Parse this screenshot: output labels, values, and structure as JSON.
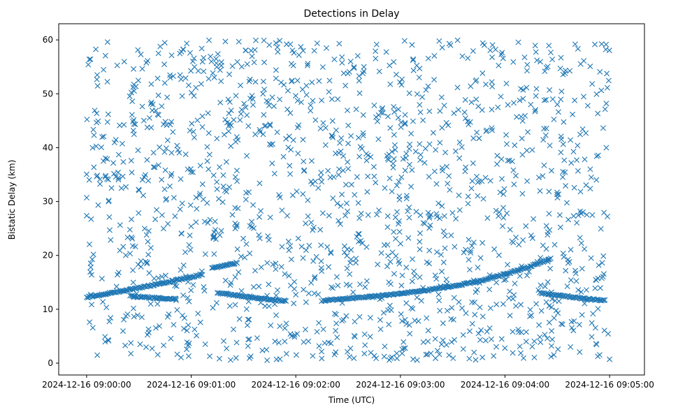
{
  "chart_data": {
    "type": "scatter",
    "title": "Detections in Delay",
    "xlabel": "Time (UTC)",
    "ylabel": "Bistatic Delay (km)",
    "xlim": [
      "2024-12-16 08:59:44",
      "2024-12-16 09:05:20"
    ],
    "ylim": [
      -2.2,
      63
    ],
    "x_ticks": [
      "2024-12-16 09:00:00",
      "2024-12-16 09:01:00",
      "2024-12-16 09:02:00",
      "2024-12-16 09:03:00",
      "2024-12-16 09:04:00",
      "2024-12-16 09:05:00"
    ],
    "y_ticks": [
      0,
      10,
      20,
      30,
      40,
      50,
      60
    ],
    "marker": "x",
    "color": "#1f77b4",
    "grid": false,
    "tracks": [
      {
        "points": [
          [
            "2024-12-16 09:00:00",
            12.2
          ],
          [
            "2024-12-16 09:00:10",
            12.8
          ],
          [
            "2024-12-16 09:00:20",
            13.4
          ],
          [
            "2024-12-16 09:00:30",
            14.0
          ],
          [
            "2024-12-16 09:00:40",
            14.6
          ],
          [
            "2024-12-16 09:00:50",
            15.3
          ],
          [
            "2024-12-16 09:01:00",
            16.0
          ],
          [
            "2024-12-16 09:01:07",
            16.5
          ]
        ]
      },
      {
        "points": [
          [
            "2024-12-16 09:01:12",
            17.6
          ],
          [
            "2024-12-16 09:01:20",
            18.2
          ],
          [
            "2024-12-16 09:01:27",
            18.7
          ]
        ]
      },
      {
        "points": [
          [
            "2024-12-16 09:00:25",
            12.5
          ],
          [
            "2024-12-16 09:00:35",
            12.2
          ],
          [
            "2024-12-16 09:00:45",
            12.0
          ],
          [
            "2024-12-16 09:00:52",
            11.9
          ]
        ]
      },
      {
        "points": [
          [
            "2024-12-16 09:01:15",
            13.0
          ],
          [
            "2024-12-16 09:01:25",
            12.6
          ],
          [
            "2024-12-16 09:01:35",
            12.2
          ],
          [
            "2024-12-16 09:01:45",
            11.8
          ],
          [
            "2024-12-16 09:01:55",
            11.5
          ]
        ]
      },
      {
        "points": [
          [
            "2024-12-16 09:02:15",
            11.6
          ],
          [
            "2024-12-16 09:02:30",
            12.0
          ],
          [
            "2024-12-16 09:02:45",
            12.4
          ],
          [
            "2024-12-16 09:03:00",
            12.9
          ],
          [
            "2024-12-16 09:03:15",
            13.5
          ],
          [
            "2024-12-16 09:03:30",
            14.3
          ],
          [
            "2024-12-16 09:03:45",
            15.2
          ],
          [
            "2024-12-16 09:04:00",
            16.5
          ],
          [
            "2024-12-16 09:04:15",
            18.0
          ],
          [
            "2024-12-16 09:04:27",
            19.5
          ]
        ]
      },
      {
        "points": [
          [
            "2024-12-16 09:04:20",
            13.0
          ],
          [
            "2024-12-16 09:04:30",
            12.6
          ],
          [
            "2024-12-16 09:04:40",
            12.2
          ],
          [
            "2024-12-16 09:04:50",
            11.8
          ],
          [
            "2024-12-16 09:04:58",
            11.6
          ]
        ]
      }
    ],
    "clutter": {
      "count": 1500,
      "time_range": [
        "2024-12-16 09:00:00",
        "2024-12-16 09:05:00"
      ],
      "delay_range": [
        0.5,
        60
      ]
    }
  }
}
